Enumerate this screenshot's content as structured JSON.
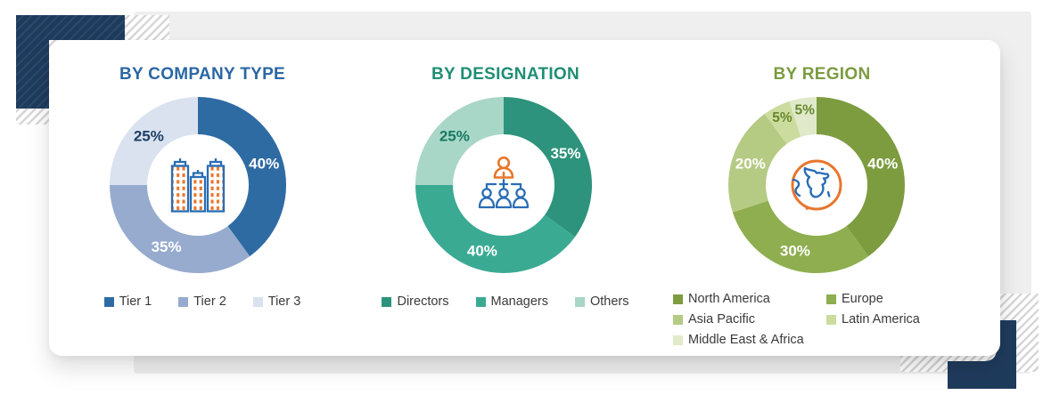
{
  "decor": {
    "navy": "#1f3b5c",
    "panel_gray": "#efefef",
    "stripe_gray": "#d7d7d7",
    "card_bg": "#ffffff",
    "icon_orange": "#e8762c",
    "icon_blue": "#2a6db4"
  },
  "chart_data": [
    {
      "type": "donut",
      "title": "BY COMPANY TYPE",
      "title_color": "#2b67a4",
      "center_icon": "buildings-icon",
      "legend_position": "bottom-row",
      "slices": [
        {
          "label": "Tier 1",
          "value": 40,
          "color": "#2f6ba3",
          "label_color": "#ffffff"
        },
        {
          "label": "Tier 2",
          "value": 35,
          "color": "#96abce",
          "label_color": "#ffffff"
        },
        {
          "label": "Tier 3",
          "value": 25,
          "color": "#dbe2ef",
          "label_color": "#1d3f66"
        }
      ]
    },
    {
      "type": "donut",
      "title": "BY DESIGNATION",
      "title_color": "#1f8e74",
      "center_icon": "org-chart-icon",
      "legend_position": "bottom-row",
      "slices": [
        {
          "label": "Directors",
          "value": 35,
          "color": "#2d937c",
          "label_color": "#ffffff"
        },
        {
          "label": "Managers",
          "value": 40,
          "color": "#3baa93",
          "label_color": "#ffffff"
        },
        {
          "label": "Others",
          "value": 25,
          "color": "#a8d6c7",
          "label_color": "#177a61"
        }
      ]
    },
    {
      "type": "donut",
      "title": "BY REGION",
      "title_color": "#7c9b41",
      "center_icon": "globe-icon",
      "legend_position": "bottom-two-columns",
      "slices": [
        {
          "label": "North America",
          "value": 40,
          "color": "#7d9c40",
          "label_color": "#ffffff"
        },
        {
          "label": "Europe",
          "value": 30,
          "color": "#8fae4f",
          "label_color": "#ffffff"
        },
        {
          "label": "Asia Pacific",
          "value": 20,
          "color": "#b5ca83",
          "label_color": "#ffffff"
        },
        {
          "label": "Latin America",
          "value": 5,
          "color": "#ccdc9e",
          "label_color": "#68882f"
        },
        {
          "label": "Middle East & Africa",
          "value": 5,
          "color": "#e0eaca",
          "label_color": "#68882f"
        }
      ]
    }
  ]
}
